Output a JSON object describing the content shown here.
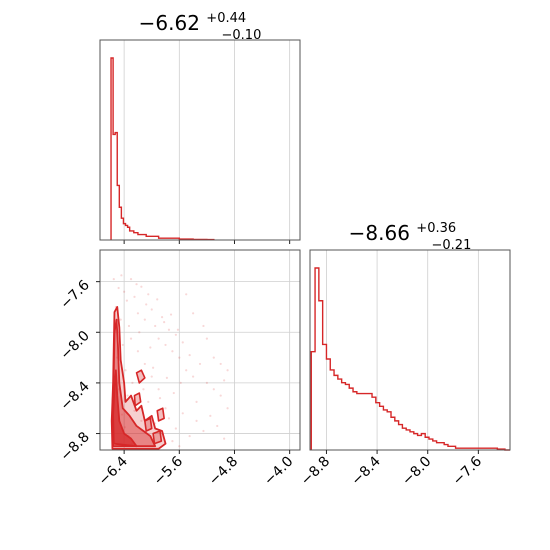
{
  "chart_data": {
    "type": "corner",
    "color": "#d62728",
    "grid": true,
    "parameters": [
      {
        "median": "−6.62",
        "upper": "+0.44",
        "lower": "−0.10",
        "range": [
          -6.75,
          -3.85
        ],
        "ticks": [
          -6.4,
          -5.6,
          -4.8,
          -4.0
        ],
        "tick_labels": [
          "−6.4",
          "−5.6",
          "−4.8",
          "−4.0"
        ]
      },
      {
        "median": "−8.66",
        "upper": "+0.36",
        "lower": "−0.21",
        "range": [
          -8.93,
          -7.35
        ],
        "ticks": [
          -8.8,
          -8.4,
          -8.0,
          -7.6
        ],
        "tick_labels": [
          "−8.8",
          "−8.4",
          "−8.0",
          "−7.6"
        ]
      }
    ],
    "histogram_1": {
      "bin_edges": [
        -6.59,
        -6.56,
        -6.53,
        -6.5,
        -6.47,
        -6.44,
        -6.41,
        -6.38,
        -6.35,
        -6.32,
        -6.29,
        -6.26,
        -6.2,
        -6.14,
        -6.08,
        -6.02,
        -5.9,
        -5.8,
        -5.7,
        -5.6,
        -5.5,
        -5.4,
        -5.3,
        -5.2,
        -5.1
      ],
      "density": [
        1.0,
        0.58,
        0.59,
        0.3,
        0.18,
        0.12,
        0.09,
        0.08,
        0.07,
        0.05,
        0.05,
        0.04,
        0.03,
        0.03,
        0.02,
        0.02,
        0.01,
        0.01,
        0.01,
        0.005,
        0.005,
        0.003,
        0.003,
        0.002
      ]
    },
    "histogram_2": {
      "bin_edges": [
        -8.92,
        -8.89,
        -8.86,
        -8.83,
        -8.8,
        -8.77,
        -8.74,
        -8.71,
        -8.68,
        -8.65,
        -8.62,
        -8.59,
        -8.56,
        -8.5,
        -8.44,
        -8.41,
        -8.38,
        -8.35,
        -8.32,
        -8.29,
        -8.26,
        -8.23,
        -8.2,
        -8.17,
        -8.14,
        -8.11,
        -8.08,
        -8.05,
        -8.02,
        -7.99,
        -7.96,
        -7.93,
        -7.9,
        -7.87,
        -7.84,
        -7.81,
        -7.78,
        -7.75,
        -7.69,
        -7.63,
        -7.57,
        -7.51,
        -7.45,
        -7.39,
        -7.35
      ],
      "density": [
        0.54,
        1.0,
        0.82,
        0.58,
        0.5,
        0.44,
        0.41,
        0.39,
        0.37,
        0.36,
        0.34,
        0.32,
        0.31,
        0.31,
        0.29,
        0.26,
        0.24,
        0.22,
        0.21,
        0.18,
        0.16,
        0.14,
        0.12,
        0.11,
        0.1,
        0.09,
        0.08,
        0.09,
        0.07,
        0.06,
        0.05,
        0.04,
        0.04,
        0.03,
        0.02,
        0.02,
        0.01,
        0.01,
        0.01,
        0.01,
        0.01,
        0.01,
        0.005,
        0.0
      ]
    },
    "scatter_samples": [
      [
        -6.52,
        -7.8
      ],
      [
        -6.48,
        -7.65
      ],
      [
        -6.44,
        -7.55
      ],
      [
        -6.4,
        -7.68
      ],
      [
        -6.36,
        -7.75
      ],
      [
        -6.3,
        -7.58
      ],
      [
        -6.25,
        -7.72
      ],
      [
        -6.2,
        -7.85
      ],
      [
        -6.15,
        -7.64
      ],
      [
        -6.1,
        -7.9
      ],
      [
        -6.05,
        -7.7
      ],
      [
        -6.0,
        -7.82
      ],
      [
        -5.95,
        -7.95
      ],
      [
        -5.9,
        -8.05
      ],
      [
        -5.85,
        -7.88
      ],
      [
        -5.8,
        -8.1
      ],
      [
        -5.75,
        -7.98
      ],
      [
        -5.7,
        -8.15
      ],
      [
        -5.65,
        -8.02
      ],
      [
        -5.6,
        -8.2
      ],
      [
        -5.55,
        -8.08
      ],
      [
        -5.5,
        -8.3
      ],
      [
        -5.45,
        -8.18
      ],
      [
        -5.4,
        -8.35
      ],
      [
        -5.3,
        -8.25
      ],
      [
        -5.2,
        -8.4
      ],
      [
        -5.1,
        -8.45
      ],
      [
        -5.0,
        -8.5
      ],
      [
        -4.95,
        -8.38
      ],
      [
        -4.9,
        -8.6
      ],
      [
        -5.25,
        -7.95
      ],
      [
        -5.35,
        -8.55
      ],
      [
        -5.8,
        -8.6
      ],
      [
        -5.9,
        -8.45
      ],
      [
        -6.0,
        -8.35
      ],
      [
        -6.1,
        -8.25
      ],
      [
        -6.2,
        -8.15
      ],
      [
        -6.3,
        -8.05
      ],
      [
        -6.35,
        -8.5
      ],
      [
        -6.25,
        -8.62
      ],
      [
        -6.15,
        -8.7
      ],
      [
        -6.05,
        -8.55
      ],
      [
        -5.95,
        -8.72
      ],
      [
        -5.85,
        -8.8
      ],
      [
        -5.75,
        -8.68
      ],
      [
        -5.65,
        -8.76
      ],
      [
        -5.55,
        -8.64
      ],
      [
        -5.45,
        -8.82
      ],
      [
        -5.35,
        -8.7
      ],
      [
        -5.25,
        -8.78
      ],
      [
        -5.15,
        -8.66
      ],
      [
        -5.05,
        -8.74
      ],
      [
        -4.95,
        -8.84
      ],
      [
        -6.45,
        -7.9
      ],
      [
        -6.42,
        -8.1
      ],
      [
        -6.38,
        -8.3
      ],
      [
        -6.33,
        -7.95
      ],
      [
        -6.28,
        -8.4
      ],
      [
        -6.22,
        -7.62
      ],
      [
        -6.18,
        -8.0
      ],
      [
        -6.12,
        -8.45
      ],
      [
        -6.08,
        -7.78
      ],
      [
        -6.02,
        -8.12
      ],
      [
        -5.98,
        -8.28
      ],
      [
        -5.92,
        -7.74
      ],
      [
        -5.88,
        -8.52
      ],
      [
        -5.82,
        -7.92
      ],
      [
        -5.78,
        -8.36
      ],
      [
        -5.72,
        -7.86
      ],
      [
        -5.68,
        -8.48
      ],
      [
        -5.62,
        -7.98
      ],
      [
        -5.58,
        -8.4
      ],
      [
        -6.5,
        -8.2
      ],
      [
        -6.47,
        -8.45
      ],
      [
        -6.43,
        -8.65
      ],
      [
        -6.39,
        -8.75
      ],
      [
        -6.34,
        -8.82
      ],
      [
        -6.29,
        -8.88
      ],
      [
        -6.55,
        -7.58
      ],
      [
        -6.53,
        -8.0
      ],
      [
        -5.5,
        -7.7
      ],
      [
        -5.4,
        -7.85
      ],
      [
        -5.2,
        -8.05
      ],
      [
        -5.1,
        -8.2
      ],
      [
        -5.0,
        -8.25
      ],
      [
        -4.9,
        -8.3
      ],
      [
        -5.6,
        -8.9
      ],
      [
        -5.7,
        -8.86
      ]
    ],
    "contours": [
      {
        "level": "outer",
        "points": [
          [
            -6.57,
            -8.92
          ],
          [
            -6.58,
            -8.7
          ],
          [
            -6.56,
            -8.4
          ],
          [
            -6.55,
            -8.1
          ],
          [
            -6.54,
            -7.84
          ],
          [
            -6.5,
            -7.8
          ],
          [
            -6.47,
            -7.96
          ],
          [
            -6.45,
            -8.22
          ],
          [
            -6.4,
            -8.4
          ],
          [
            -6.38,
            -8.55
          ],
          [
            -6.3,
            -8.5
          ],
          [
            -6.22,
            -8.62
          ],
          [
            -6.15,
            -8.58
          ],
          [
            -6.1,
            -8.7
          ],
          [
            -6.0,
            -8.66
          ],
          [
            -5.95,
            -8.76
          ],
          [
            -5.85,
            -8.78
          ],
          [
            -5.8,
            -8.88
          ],
          [
            -5.9,
            -8.92
          ]
        ]
      },
      {
        "level": "middle",
        "points": [
          [
            -6.56,
            -8.9
          ],
          [
            -6.57,
            -8.62
          ],
          [
            -6.55,
            -8.3
          ],
          [
            -6.54,
            -8.0
          ],
          [
            -6.51,
            -7.9
          ],
          [
            -6.49,
            -8.1
          ],
          [
            -6.47,
            -8.4
          ],
          [
            -6.42,
            -8.6
          ],
          [
            -6.32,
            -8.66
          ],
          [
            -6.22,
            -8.74
          ],
          [
            -6.12,
            -8.78
          ],
          [
            -6.02,
            -8.82
          ],
          [
            -5.95,
            -8.9
          ]
        ]
      },
      {
        "level": "inner",
        "points": [
          [
            -6.55,
            -8.88
          ],
          [
            -6.56,
            -8.65
          ],
          [
            -6.54,
            -8.45
          ],
          [
            -6.52,
            -8.3
          ],
          [
            -6.5,
            -8.5
          ],
          [
            -6.47,
            -8.7
          ],
          [
            -6.4,
            -8.8
          ],
          [
            -6.3,
            -8.84
          ],
          [
            -6.22,
            -8.9
          ]
        ]
      }
    ],
    "contour_islands": [
      [
        [
          -6.22,
          -8.32
        ],
        [
          -6.15,
          -8.3
        ],
        [
          -6.1,
          -8.36
        ],
        [
          -6.18,
          -8.4
        ]
      ],
      [
        [
          -6.25,
          -8.5
        ],
        [
          -6.18,
          -8.48
        ],
        [
          -6.16,
          -8.55
        ],
        [
          -6.24,
          -8.58
        ]
      ],
      [
        [
          -5.92,
          -8.62
        ],
        [
          -5.84,
          -8.6
        ],
        [
          -5.82,
          -8.68
        ],
        [
          -5.9,
          -8.7
        ]
      ],
      [
        [
          -6.1,
          -8.7
        ],
        [
          -6.02,
          -8.68
        ],
        [
          -6.0,
          -8.76
        ],
        [
          -6.08,
          -8.78
        ]
      ],
      [
        [
          -5.98,
          -8.8
        ],
        [
          -5.88,
          -8.78
        ],
        [
          -5.86,
          -8.86
        ],
        [
          -5.96,
          -8.88
        ]
      ]
    ]
  }
}
